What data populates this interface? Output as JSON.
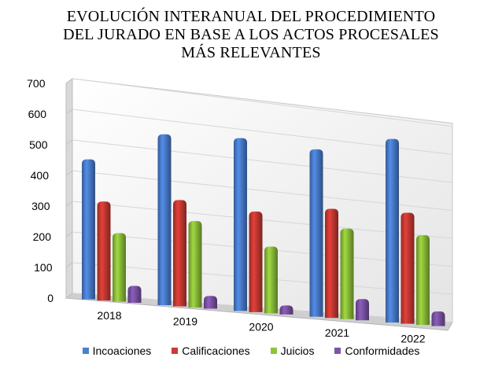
{
  "chart_data": {
    "type": "bar",
    "title_lines": [
      "EVOLUCIÓN INTERANUAL DEL PROCEDIMIENTO",
      "DEL JURADO EN BASE A LOS ACTOS PROCESALES",
      "MÁS RELEVANTES"
    ],
    "categories": [
      "2018",
      "2019",
      "2020",
      "2021",
      "2022"
    ],
    "series": [
      {
        "name": "Incoaciones",
        "color": "#4a7fd1",
        "values": [
          458,
          569,
          586,
          578,
          646
        ]
      },
      {
        "name": "Calificaciones",
        "color": "#cc3a33",
        "values": [
          325,
          355,
          342,
          378,
          392
        ]
      },
      {
        "name": "Juicios",
        "color": "#8fc33a",
        "values": [
          226,
          290,
          228,
          315,
          318
        ]
      },
      {
        "name": "Conformidades",
        "color": "#7e54a8",
        "values": [
          56,
          43,
          31,
          74,
          52
        ]
      }
    ],
    "yticks": [
      "0",
      "100",
      "200",
      "300",
      "400",
      "500",
      "600",
      "700"
    ],
    "ylim": [
      0,
      700
    ],
    "grid": true,
    "legend_position": "bottom",
    "style": "3d-clustered-column"
  }
}
